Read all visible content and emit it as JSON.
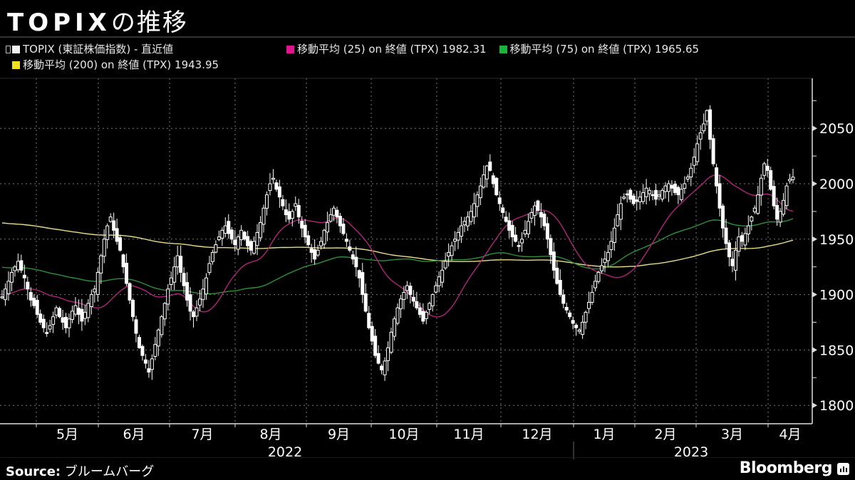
{
  "header": {
    "title_latin": "TOPIX",
    "title_jp": "の推移"
  },
  "legend": {
    "series": [
      {
        "label": "TOPIX (東証株価指数) - 直近値",
        "color": "#f0f0f0",
        "icon": "candlestick-pin-icon"
      },
      {
        "label": "移動平均 (25)  on 終値 (TPX) 1982.31",
        "color": "#e0148c"
      },
      {
        "label": "移動平均 (75)  on 終値 (TPX) 1965.65",
        "color": "#1db33b"
      },
      {
        "label": "移動平均 (200)  on 終値 (TPX)  1943.95",
        "color": "#f0e020"
      }
    ]
  },
  "footer": {
    "source_label": "Source:",
    "source_value": "ブルームバーグ",
    "brand": "Bloomberg",
    "brand_icon": "bloomberg-chart-icon"
  },
  "colors": {
    "background": "#000000",
    "candle": "#ffffff",
    "ma25": "#b0247a",
    "ma75": "#2f8f3a",
    "ma200": "#e8dc8c",
    "grid": "#777777"
  },
  "chart_data": {
    "type": "candlestick",
    "title": "TOPIXの推移",
    "xlabel": "",
    "ylabel": "",
    "ylim": [
      1785,
      2090
    ],
    "y_ticks": [
      1800,
      1850,
      1900,
      1950,
      2000,
      2050
    ],
    "x_month_labels": [
      "5月",
      "6月",
      "7月",
      "8月",
      "9月",
      "10月",
      "11月",
      "12月",
      "1月",
      "2月",
      "3月",
      "4月"
    ],
    "x_year_labels": [
      {
        "label": "2022",
        "span": [
          "5月",
          "12月"
        ]
      },
      {
        "label": "2023",
        "span": [
          "1月",
          "4月"
        ]
      }
    ],
    "grid": true,
    "legend_position": "top",
    "latest_values": {
      "MA25": 1982.31,
      "MA75": 1965.65,
      "MA200": 1943.95
    },
    "close_series_approx": [
      1898,
      1905,
      1912,
      1920,
      1925,
      1930,
      1922,
      1915,
      1905,
      1895,
      1890,
      1882,
      1875,
      1870,
      1865,
      1872,
      1880,
      1888,
      1880,
      1875,
      1870,
      1878,
      1885,
      1890,
      1882,
      1876,
      1884,
      1892,
      1900,
      1905,
      1920,
      1935,
      1950,
      1962,
      1970,
      1958,
      1948,
      1940,
      1925,
      1910,
      1895,
      1880,
      1865,
      1852,
      1845,
      1838,
      1830,
      1842,
      1855,
      1868,
      1880,
      1892,
      1905,
      1915,
      1925,
      1935,
      1920,
      1908,
      1895,
      1885,
      1880,
      1888,
      1896,
      1905,
      1915,
      1928,
      1938,
      1945,
      1952,
      1958,
      1962,
      1955,
      1950,
      1945,
      1952,
      1958,
      1950,
      1944,
      1940,
      1948,
      1956,
      1965,
      1978,
      1990,
      2000,
      2005,
      1995,
      1988,
      1980,
      1972,
      1968,
      1975,
      1982,
      1970,
      1960,
      1952,
      1945,
      1938,
      1932,
      1940,
      1948,
      1958,
      1965,
      1972,
      1978,
      1970,
      1962,
      1955,
      1948,
      1940,
      1932,
      1925,
      1915,
      1900,
      1885,
      1870,
      1858,
      1845,
      1838,
      1832,
      1840,
      1852,
      1866,
      1878,
      1888,
      1896,
      1902,
      1908,
      1900,
      1894,
      1888,
      1882,
      1876,
      1884,
      1892,
      1900,
      1908,
      1916,
      1922,
      1930,
      1938,
      1944,
      1950,
      1956,
      1962,
      1966,
      1970,
      1975,
      1982,
      1990,
      1998,
      2008,
      2016,
      2012,
      2000,
      1990,
      1982,
      1974,
      1966,
      1958,
      1952,
      1948,
      1944,
      1950,
      1958,
      1966,
      1974,
      1980,
      1976,
      1970,
      1962,
      1950,
      1936,
      1922,
      1910,
      1900,
      1892,
      1886,
      1880,
      1874,
      1870,
      1868,
      1875,
      1884,
      1893,
      1902,
      1912,
      1920,
      1926,
      1932,
      1938,
      1948,
      1960,
      1972,
      1982,
      1988,
      1990,
      1986,
      1982,
      1984,
      1988,
      1992,
      1996,
      1994,
      1990,
      1986,
      1990,
      1994,
      1998,
      2000,
      1996,
      1992,
      1990,
      1995,
      2000,
      2006,
      2014,
      2024,
      2036,
      2046,
      2054,
      2066,
      2040,
      2018,
      1998,
      1978,
      1960,
      1946,
      1934,
      1926,
      1940,
      1952,
      1948,
      1955,
      1962,
      1970,
      1978,
      1990,
      2005,
      2018,
      2012,
      1995,
      1980,
      1968,
      1975,
      1985,
      1998,
      2004,
      2006
    ]
  }
}
